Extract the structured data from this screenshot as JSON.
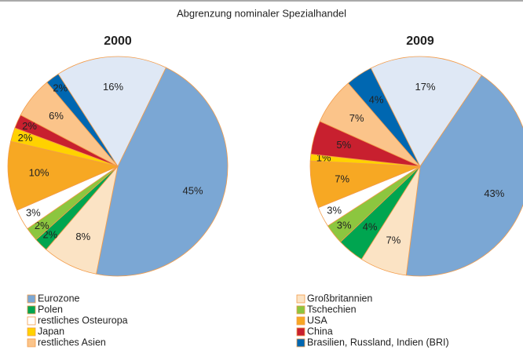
{
  "title": "Abgrenzung nominaler Spezialhandel",
  "chart_data": [
    {
      "type": "pie",
      "title": "2000",
      "startangle": 26,
      "categories": [
        "Eurozone",
        "Großbritannien",
        "Polen",
        "Tschechien",
        "restliches Osteuropa",
        "USA",
        "Japan",
        "China",
        "restliches Asien",
        "Brasilien, Russland, Indien (BRI)",
        null
      ],
      "values": [
        45,
        8,
        2,
        2,
        3,
        10,
        2,
        2,
        6,
        2,
        16
      ],
      "value_labels": [
        "45%",
        "8%",
        "2%",
        "2%",
        "3%",
        "10%",
        "2%",
        "2%",
        "6%",
        "2%",
        "16%"
      ],
      "colors": [
        "#7ba7d4",
        "#fbe3c4",
        "#00a550",
        "#8cc63f",
        "#ffffff",
        "#f7a823",
        "#ffd200",
        "#c8202f",
        "#fbc48a",
        "#0067b1",
        "#dfe8f5"
      ]
    },
    {
      "type": "pie",
      "title": "2009",
      "startangle": 34,
      "categories": [
        "Eurozone",
        "Großbritannien",
        "Polen",
        "Tschechien",
        "restliches Osteuropa",
        "USA",
        "Japan",
        "China",
        "restliches Asien",
        "Brasilien, Russland, Indien (BRI)",
        null
      ],
      "values": [
        43,
        7,
        4,
        3,
        3,
        7,
        1,
        5,
        7,
        4,
        17
      ],
      "value_labels": [
        "43%",
        "7%",
        "4%",
        "3%",
        "3%",
        "7%",
        "1%",
        "5%",
        "7%",
        "4%",
        "17%"
      ],
      "colors": [
        "#7ba7d4",
        "#fbe3c4",
        "#00a550",
        "#8cc63f",
        "#ffffff",
        "#f7a823",
        "#ffd200",
        "#c8202f",
        "#fbc48a",
        "#0067b1",
        "#dfe8f5"
      ]
    }
  ]
}
